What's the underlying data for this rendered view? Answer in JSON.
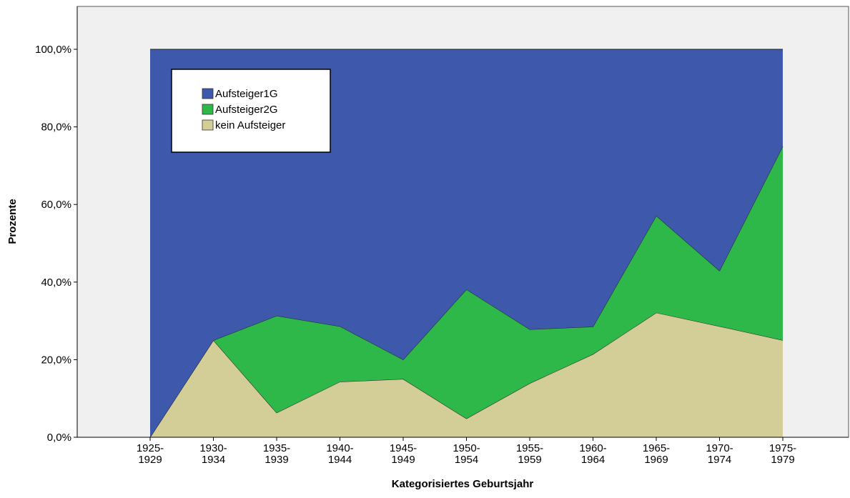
{
  "chart_data": {
    "type": "area",
    "stacked": true,
    "x_label": "Kategorisiertes Geburtsjahr",
    "y_label": "Prozente",
    "categories": [
      "1925-1929",
      "1930-1934",
      "1935-1939",
      "1940-1944",
      "1945-1949",
      "1950-1954",
      "1955-1959",
      "1960-1964",
      "1965-1969",
      "1970-1974",
      "1975-1979"
    ],
    "series": [
      {
        "name": "Aufsteiger1G",
        "color": "#3e58ac",
        "values": [
          100,
          75,
          68.7,
          71.4,
          80,
          61.9,
          72.2,
          71.5,
          42.9,
          57.1,
          25
        ]
      },
      {
        "name": "Aufsteiger2G",
        "color": "#2fb84a",
        "values": [
          0,
          0,
          25,
          14.3,
          5,
          33.3,
          13.9,
          7.1,
          25,
          14.3,
          50
        ]
      },
      {
        "name": "kein Aufsteiger",
        "color": "#d3ce97",
        "values": [
          0,
          25,
          6.3,
          14.3,
          15,
          4.8,
          13.9,
          21.4,
          32.1,
          28.6,
          25
        ]
      }
    ],
    "ylim": [
      0,
      100
    ],
    "yticks": [
      {
        "value": 0,
        "label": "0,0%"
      },
      {
        "value": 20,
        "label": "20,0%"
      },
      {
        "value": 40,
        "label": "40,0%"
      },
      {
        "value": 60,
        "label": "60,0%"
      },
      {
        "value": 80,
        "label": "80,0%"
      },
      {
        "value": 100,
        "label": "100,0%"
      }
    ]
  }
}
